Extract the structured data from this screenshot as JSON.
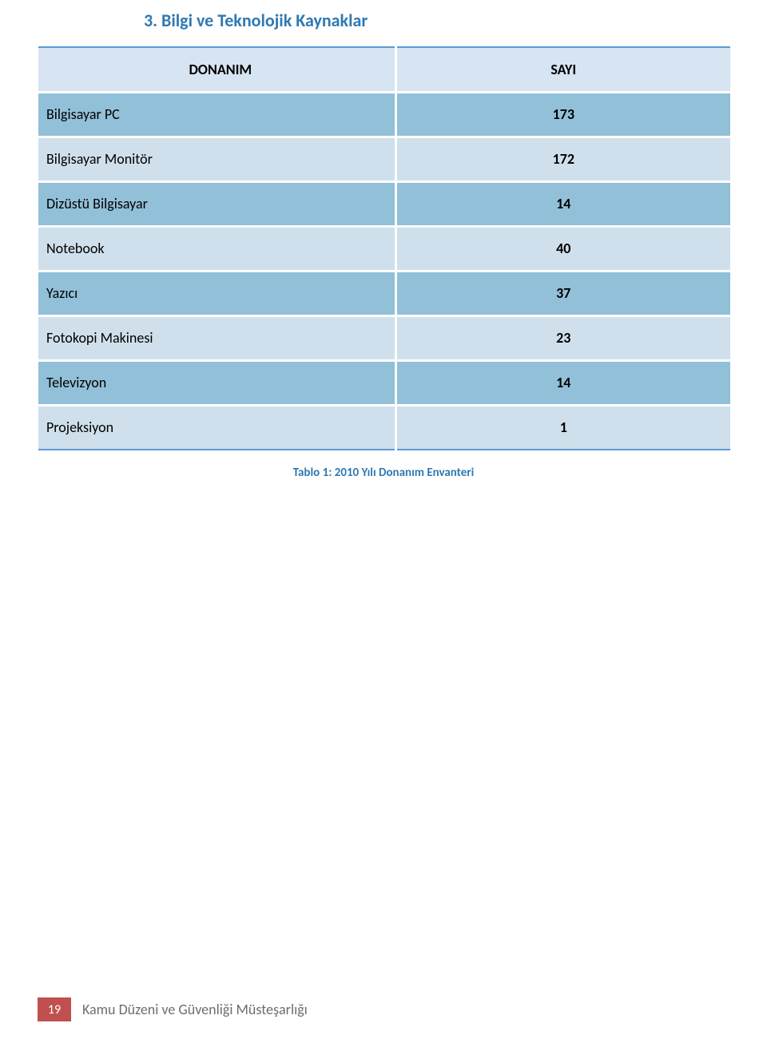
{
  "heading": "3.  Bilgi ve Teknolojik Kaynaklar",
  "table": {
    "header": {
      "name": "DONANIM",
      "value": "SAYI"
    },
    "rows": [
      {
        "name": "Bilgisayar PC",
        "value": "173"
      },
      {
        "name": "Bilgisayar Monitör",
        "value": "172"
      },
      {
        "name": "Dizüstü Bilgisayar",
        "value": "14"
      },
      {
        "name": "Notebook",
        "value": "40"
      },
      {
        "name": "Yazıcı",
        "value": "37"
      },
      {
        "name": "Fotokopi Makinesi",
        "value": "23"
      },
      {
        "name": "Televizyon",
        "value": "14"
      },
      {
        "name": "Projeksiyon",
        "value": "1"
      }
    ]
  },
  "caption": "Tablo 1: 2010 Yılı Donanım Envanteri",
  "footer": {
    "page_number": "19",
    "text": "Kamu Düzeni ve Güvenliği Müsteşarlığı"
  },
  "colors": {
    "heading_color": "#2f79b2",
    "row_dark": "#92c0d8",
    "row_light": "#cfe0ec",
    "header_bg": "#d7e4f2",
    "table_border_accent": "#5a9bd5",
    "footer_box_bg": "#c0504d",
    "footer_text_color": "#6d6d6d",
    "page_bg": "#ffffff"
  }
}
